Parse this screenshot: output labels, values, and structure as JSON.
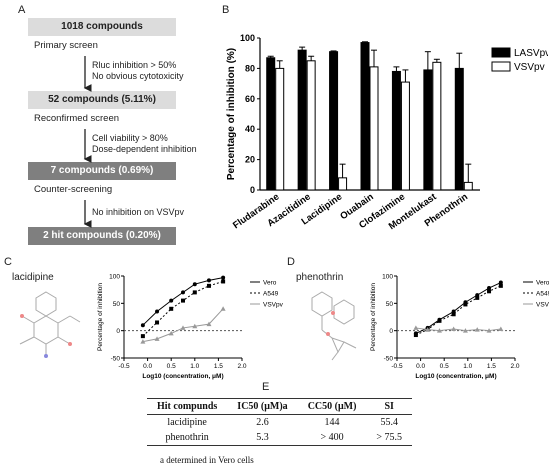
{
  "panels": {
    "a": "A",
    "b": "B",
    "c": "C",
    "d": "D",
    "e": "E"
  },
  "flowchart": {
    "boxes": [
      "1018 compounds",
      "52 compounds  (5.11%)",
      "7 compounds  (0.69%)",
      "2 hit compounds  (0.20%)"
    ],
    "steps": [
      "Primary screen",
      "Reconfirmed screen",
      "Counter-screening"
    ],
    "criteria": [
      [
        "Rluc inhibition > 50%",
        "No obvious cytotoxicity"
      ],
      [
        "Cell viability > 80%",
        "Dose-dependent inhibition"
      ],
      [
        "No inhibition on VSVpv"
      ]
    ]
  },
  "chart_data": [
    {
      "type": "bar",
      "ylabel": "Percentage of inhibition (%)",
      "ylim": [
        0,
        100
      ],
      "yticks": [
        "0",
        "20",
        "40",
        "60",
        "80",
        "100"
      ],
      "categories": [
        "Fludarabine",
        "Azacitidine",
        "Lacidipine",
        "Ouabain",
        "Clofazimine",
        "Montelukast",
        "Phenothrin"
      ],
      "series": [
        {
          "name": "LASVpv",
          "color": "#000000",
          "values": [
            87,
            92,
            91,
            97,
            78,
            79,
            80
          ],
          "errors": [
            1,
            2,
            0.5,
            0.5,
            3,
            12,
            10
          ]
        },
        {
          "name": "VSVpv",
          "color": "#ffffff",
          "values": [
            80,
            85,
            8,
            81,
            71,
            84,
            5
          ],
          "errors": [
            5,
            3,
            9,
            11,
            8,
            2,
            12
          ]
        }
      ],
      "legend_position": "top-right"
    },
    {
      "type": "line",
      "compound": "lacidipine",
      "xlabel": "Log10 (concentration, μM)",
      "ylabel": "Percentage of inhibition",
      "xlim": [
        -0.5,
        2.0
      ],
      "ylim": [
        -50,
        100
      ],
      "xticks": [
        "-0.5",
        "0.0",
        "0.5",
        "1.0",
        "1.5",
        "2.0"
      ],
      "yticks": [
        "-50",
        "0",
        "50",
        "100"
      ],
      "x": [
        -0.1,
        0.2,
        0.5,
        0.75,
        1.0,
        1.3,
        1.6
      ],
      "series": [
        {
          "name": "Vero",
          "values": [
            10,
            35,
            55,
            70,
            85,
            92,
            97
          ]
        },
        {
          "name": "A549",
          "values": [
            -10,
            15,
            40,
            55,
            70,
            82,
            90
          ]
        },
        {
          "name": "VSVpv",
          "values": [
            -20,
            -15,
            -5,
            5,
            8,
            12,
            40
          ]
        }
      ],
      "legend_position": "top-right"
    },
    {
      "type": "line",
      "compound": "phenothrin",
      "xlabel": "Log10 (concentration, μM)",
      "ylabel": "Percentage of inhibition",
      "xlim": [
        -0.5,
        2.0
      ],
      "ylim": [
        -50,
        100
      ],
      "xticks": [
        "-0.5",
        "0.0",
        "0.5",
        "1.0",
        "1.5",
        "2.0"
      ],
      "yticks": [
        "-50",
        "0",
        "50",
        "100"
      ],
      "x": [
        -0.1,
        0.15,
        0.4,
        0.7,
        0.95,
        1.2,
        1.45,
        1.7
      ],
      "series": [
        {
          "name": "Vero",
          "values": [
            -5,
            5,
            20,
            35,
            52,
            65,
            78,
            88
          ]
        },
        {
          "name": "A549",
          "values": [
            -8,
            2,
            18,
            30,
            48,
            60,
            72,
            82
          ]
        },
        {
          "name": "VSVpv",
          "values": [
            5,
            2,
            0,
            3,
            0,
            2,
            0,
            3
          ]
        }
      ],
      "legend_position": "top-right"
    }
  ],
  "table": {
    "headers": [
      "Hit compunds",
      "IC50 (μM)a",
      "CC50 (μM)",
      "SI"
    ],
    "rows": [
      [
        "lacidipine",
        "2.6",
        "144",
        "55.4"
      ],
      [
        "phenothrin",
        "5.3",
        "> 400",
        "> 75.5"
      ]
    ],
    "note": "a determined in Vero cells"
  }
}
